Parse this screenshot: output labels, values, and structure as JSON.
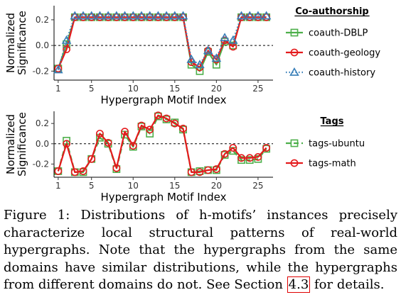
{
  "chart_data": [
    {
      "type": "line",
      "xlabel": "Hypergraph Motif Index",
      "ylabel_lines": [
        "Normalized",
        "Significance"
      ],
      "xlim": [
        0.5,
        26.8
      ],
      "ylim": [
        -0.27,
        0.31
      ],
      "xticks": [
        1,
        5,
        10,
        15,
        20,
        25
      ],
      "yticks": [
        -0.2,
        0.0,
        0.2
      ],
      "ytick_labels": [
        "-0.2",
        "0.0",
        "0.2"
      ],
      "reference_line": 0,
      "legend_title": "Co-authorship",
      "legend_position": "right",
      "x": [
        1,
        2,
        3,
        4,
        5,
        6,
        7,
        8,
        9,
        10,
        11,
        12,
        13,
        14,
        15,
        16,
        17,
        18,
        19,
        20,
        21,
        22,
        23,
        24,
        25,
        26
      ],
      "series": [
        {
          "name": "coauth-DBLP",
          "color": "#4daf4a",
          "marker": "square",
          "dash": "solid",
          "values": [
            -0.18,
            0.01,
            0.22,
            0.22,
            0.22,
            0.22,
            0.22,
            0.22,
            0.22,
            0.22,
            0.22,
            0.22,
            0.22,
            0.22,
            0.22,
            0.22,
            -0.15,
            -0.2,
            -0.05,
            -0.15,
            0.03,
            0.0,
            0.22,
            0.22,
            0.22,
            0.22
          ]
        },
        {
          "name": "coauth-geology",
          "color": "#e41a1c",
          "marker": "circle",
          "dash": "solid",
          "values": [
            -0.18,
            -0.03,
            0.22,
            0.22,
            0.22,
            0.22,
            0.22,
            0.22,
            0.22,
            0.22,
            0.22,
            0.22,
            0.22,
            0.22,
            0.22,
            0.22,
            -0.13,
            -0.17,
            -0.04,
            -0.11,
            0.04,
            -0.01,
            0.22,
            0.22,
            0.22,
            0.22
          ]
        },
        {
          "name": "coauth-history",
          "color": "#377eb8",
          "marker": "triangle",
          "dash": "dotted",
          "values": [
            -0.19,
            0.04,
            0.23,
            0.23,
            0.23,
            0.23,
            0.23,
            0.23,
            0.23,
            0.23,
            0.23,
            0.23,
            0.23,
            0.23,
            0.23,
            0.23,
            -0.11,
            -0.15,
            -0.04,
            -0.1,
            0.06,
            0.04,
            0.23,
            0.23,
            0.23,
            0.23
          ]
        }
      ]
    },
    {
      "type": "line",
      "xlabel": "Hypergraph Motif Index",
      "ylabel_lines": [
        "Normalized",
        "Significance"
      ],
      "xlim": [
        0.5,
        26.8
      ],
      "ylim": [
        -0.33,
        0.32
      ],
      "xticks": [
        1,
        5,
        10,
        15,
        20,
        25
      ],
      "yticks": [
        -0.2,
        0.0,
        0.2
      ],
      "ytick_labels": [
        "-0.2",
        "0.0",
        "0.2"
      ],
      "reference_line": 0,
      "legend_title": "Tags",
      "legend_position": "right",
      "x": [
        1,
        2,
        3,
        4,
        5,
        6,
        7,
        8,
        9,
        10,
        11,
        12,
        13,
        14,
        15,
        16,
        17,
        18,
        19,
        20,
        21,
        22,
        23,
        24,
        25,
        26
      ],
      "series": [
        {
          "name": "tags-ubuntu",
          "color": "#4daf4a",
          "marker": "square",
          "dash": "dashed",
          "values": [
            -0.27,
            0.03,
            -0.28,
            -0.28,
            -0.15,
            0.06,
            0.0,
            -0.25,
            0.09,
            -0.03,
            0.17,
            0.1,
            0.27,
            0.24,
            0.21,
            0.14,
            -0.28,
            -0.27,
            -0.26,
            -0.26,
            -0.11,
            -0.07,
            -0.16,
            -0.16,
            -0.15,
            -0.05
          ]
        },
        {
          "name": "tags-math",
          "color": "#e41a1c",
          "marker": "circle",
          "dash": "solid",
          "values": [
            -0.27,
            0.0,
            -0.28,
            -0.27,
            -0.15,
            0.1,
            0.01,
            -0.24,
            0.12,
            -0.02,
            0.18,
            0.14,
            0.28,
            0.25,
            0.2,
            0.15,
            -0.28,
            -0.28,
            -0.26,
            -0.25,
            -0.1,
            -0.04,
            -0.14,
            -0.14,
            -0.13,
            -0.04
          ]
        }
      ]
    }
  ],
  "caption": {
    "before": "Figure 1:  Distributions of h-motifs’ instances precisely characterize local structural patterns of real-world hypergraphs. Note that the hypergraphs from the same domains have similar distributions, while the hypergraphs from different domains do not. See Section ",
    "section_ref": "4.3",
    "after": " for details."
  }
}
